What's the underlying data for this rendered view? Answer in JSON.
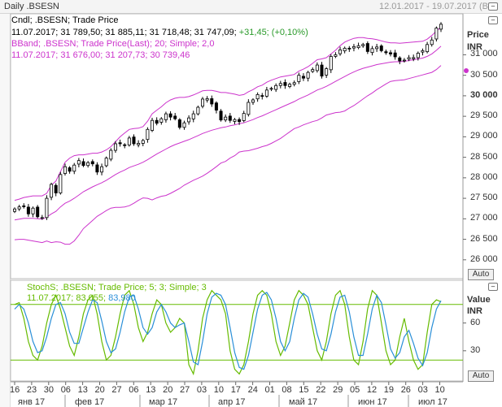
{
  "header": {
    "title": "Daily .BSESN",
    "date_range": "12.01.2017 - 19.07.2017 (BOM"
  },
  "price_panel": {
    "legend_line1": "Cndl; .BSESN; Trade Price",
    "legend_ohlc": "11.07.2017; 31 789,50; 31 885,11; 31 718,48; 31 747,09;",
    "legend_change": "+31,45; (+0,10%)",
    "legend_bband": "BBand; .BSESN; Trade Price(Last);  20; Simple; 2,0",
    "legend_bband_values": "11.07.2017; 31 676,00; 31 207,73; 30 739,46",
    "axis_title": "Price",
    "axis_currency": "INR",
    "auto_label": "Auto",
    "ticks": [
      "31 000",
      "30 500",
      "30 000",
      "29 500",
      "29 000",
      "28 500",
      "28 000",
      "27 500",
      "27 000",
      "26 500",
      "26 000"
    ]
  },
  "stoch_panel": {
    "legend_line1": "StochS; .BSESN; Trade Price;  5; 3; Simple; 3",
    "legend_date": "11.07.2017;",
    "legend_k": "83,055;",
    "legend_d": "83,980",
    "axis_title": "Value",
    "axis_currency": "INR",
    "auto_label": "Auto",
    "ticks": [
      "60",
      "30"
    ]
  },
  "x_axis": {
    "day_labels": [
      "16",
      "23",
      "30",
      "06",
      "13",
      "20",
      "27",
      "06",
      "13",
      "20",
      "27",
      "03",
      "10",
      "17",
      "24",
      "01",
      "08",
      "15",
      "22",
      "29",
      "05",
      "12",
      "19",
      "26",
      "03",
      "10"
    ],
    "month_labels": [
      "янв 17",
      "фев 17",
      "мар 17",
      "апр 17",
      "май 17",
      "июн 17",
      "июл 17"
    ]
  },
  "colors": {
    "bband": "#cc33cc",
    "stoch_k": "#66bb00",
    "stoch_d": "#2a8fd8",
    "level_line": "#66bb00",
    "candle": "#000000"
  },
  "chart_data": [
    {
      "type": "candlestick",
      "title": "Daily .BSESN",
      "x_start": "2017-01-16",
      "x_end": "2017-07-11",
      "ylim": [
        25600,
        31900
      ],
      "series": [
        {
          "name": "Cndl; .BSESN; Trade Price",
          "close": [
            27240,
            27290,
            27310,
            27120,
            27260,
            27050,
            27030,
            27500,
            27840,
            27630,
            28080,
            28270,
            28160,
            28310,
            28420,
            28300,
            28370,
            28340,
            28140,
            28270,
            28480,
            28670,
            28830,
            28830,
            28800,
            28970,
            28830,
            28840,
            28910,
            29180,
            29400,
            29330,
            29440,
            29560,
            29480,
            29440,
            29230,
            29340,
            29460,
            29560,
            29720,
            29920,
            29930,
            29800,
            29650,
            29410,
            29480,
            29400,
            29420,
            29370,
            29570,
            29840,
            29900,
            30030,
            29990,
            30140,
            30180,
            30250,
            30300,
            30250,
            30280,
            30320,
            30500,
            30430,
            30570,
            30640,
            30750,
            30480,
            30660,
            30960,
            31000,
            31120,
            31160,
            31140,
            31200,
            31220,
            31250,
            31080,
            31150,
            31190,
            31100,
            31050,
            31020,
            30950,
            30850,
            30870,
            30930,
            30930,
            31040,
            31100,
            31250,
            31360,
            31650,
            31745
          ]
        },
        {
          "name": "BBand upper",
          "values": [
            27450,
            27480,
            27520,
            27540,
            27560,
            27560,
            27560,
            27620,
            27820,
            27920,
            28150,
            28380,
            28480,
            28540,
            28560,
            28560,
            28580,
            28600,
            28600,
            28630,
            28680,
            28760,
            28880,
            29000,
            29090,
            29180,
            29200,
            29210,
            29250,
            29380,
            29560,
            29650,
            29730,
            29830,
            29900,
            29940,
            29960,
            29960,
            29980,
            30020,
            30070,
            30120,
            30130,
            30130,
            30110,
            30080,
            30080,
            30060,
            30040,
            30010,
            30030,
            30100,
            30150,
            30220,
            30260,
            30330,
            30380,
            30420,
            30460,
            30480,
            30500,
            30520,
            30600,
            30650,
            30710,
            30790,
            30880,
            30900,
            30930,
            31020,
            31110,
            31220,
            31310,
            31360,
            31400,
            31420,
            31420,
            31400,
            31390,
            31370,
            31340,
            31310,
            31290,
            31290,
            31280,
            31290,
            31300,
            31310,
            31320,
            31330,
            31380,
            31470,
            31580,
            31676
          ]
        },
        {
          "name": "BBand middle",
          "values": [
            26970,
            26990,
            27010,
            27010,
            27010,
            27000,
            26990,
            27040,
            27120,
            27180,
            27290,
            27380,
            27430,
            27500,
            27580,
            27660,
            27720,
            27780,
            27830,
            27880,
            27940,
            28010,
            28080,
            28140,
            28190,
            28250,
            28290,
            28330,
            28380,
            28440,
            28510,
            28580,
            28640,
            28700,
            28760,
            28810,
            28850,
            28890,
            28930,
            28980,
            29030,
            29080,
            29120,
            29160,
            29190,
            29220,
            29240,
            29270,
            29290,
            29320,
            29340,
            29380,
            29420,
            29470,
            29510,
            29560,
            29610,
            29660,
            29710,
            29760,
            29810,
            29860,
            29920,
            29970,
            30020,
            30080,
            30140,
            30180,
            30230,
            30290,
            30350,
            30410,
            30470,
            30530,
            30580,
            30630,
            30670,
            30700,
            30730,
            30760,
            30780,
            30800,
            30820,
            30830,
            30830,
            30840,
            30860,
            30880,
            30900,
            30920,
            30960,
            31020,
            31110,
            31208
          ]
        },
        {
          "name": "BBand lower",
          "values": [
            26490,
            26500,
            26500,
            26480,
            26460,
            26440,
            26420,
            26460,
            26420,
            26440,
            26430,
            26380,
            26380,
            26460,
            26600,
            26760,
            26860,
            26960,
            27060,
            27130,
            27200,
            27260,
            27280,
            27280,
            27290,
            27320,
            27380,
            27450,
            27510,
            27500,
            27460,
            27510,
            27550,
            27570,
            27620,
            27680,
            27740,
            27820,
            27880,
            27940,
            27990,
            28040,
            28110,
            28190,
            28270,
            28360,
            28400,
            28480,
            28540,
            28630,
            28650,
            28660,
            28690,
            28720,
            28760,
            28790,
            28840,
            28900,
            28960,
            29040,
            29120,
            29200,
            29240,
            29290,
            29330,
            29370,
            29400,
            29460,
            29530,
            29560,
            29590,
            29600,
            29630,
            29700,
            29760,
            29840,
            29920,
            30000,
            30070,
            30150,
            30220,
            30290,
            30350,
            30370,
            30380,
            30390,
            30420,
            30450,
            30480,
            30510,
            30540,
            30570,
            30640,
            30739
          ]
        }
      ]
    },
    {
      "type": "line",
      "title": "StochS; .BSESN; Trade Price;  5; 3; Simple; 3",
      "ylim": [
        0,
        100
      ],
      "levels": [
        20,
        80
      ],
      "series": [
        {
          "name": "%K",
          "values": [
            80,
            82,
            65,
            40,
            25,
            20,
            35,
            60,
            80,
            90,
            75,
            55,
            35,
            25,
            45,
            70,
            85,
            90,
            70,
            40,
            20,
            25,
            45,
            70,
            90,
            95,
            80,
            55,
            40,
            50,
            70,
            85,
            80,
            60,
            50,
            55,
            65,
            60,
            15,
            5,
            30,
            65,
            85,
            95,
            90,
            85,
            70,
            30,
            10,
            5,
            15,
            40,
            70,
            90,
            95,
            90,
            70,
            40,
            25,
            35,
            60,
            85,
            95,
            90,
            80,
            55,
            30,
            20,
            40,
            70,
            90,
            95,
            80,
            45,
            20,
            15,
            40,
            75,
            95,
            90,
            60,
            30,
            15,
            20,
            45,
            65,
            40,
            20,
            10,
            15,
            50,
            80,
            85,
            83
          ]
        },
        {
          "name": "%D",
          "values": [
            75,
            80,
            75,
            60,
            40,
            28,
            30,
            45,
            65,
            80,
            82,
            70,
            50,
            38,
            38,
            55,
            72,
            85,
            82,
            62,
            40,
            28,
            32,
            50,
            72,
            88,
            90,
            75,
            55,
            48,
            55,
            72,
            80,
            72,
            60,
            55,
            58,
            60,
            40,
            18,
            15,
            40,
            70,
            88,
            92,
            90,
            80,
            55,
            28,
            12,
            10,
            25,
            50,
            75,
            90,
            93,
            85,
            65,
            40,
            30,
            40,
            65,
            85,
            92,
            88,
            70,
            48,
            32,
            30,
            48,
            72,
            88,
            90,
            72,
            45,
            25,
            25,
            48,
            75,
            90,
            82,
            58,
            32,
            22,
            28,
            45,
            52,
            38,
            22,
            14,
            28,
            55,
            75,
            84
          ]
        }
      ]
    }
  ]
}
